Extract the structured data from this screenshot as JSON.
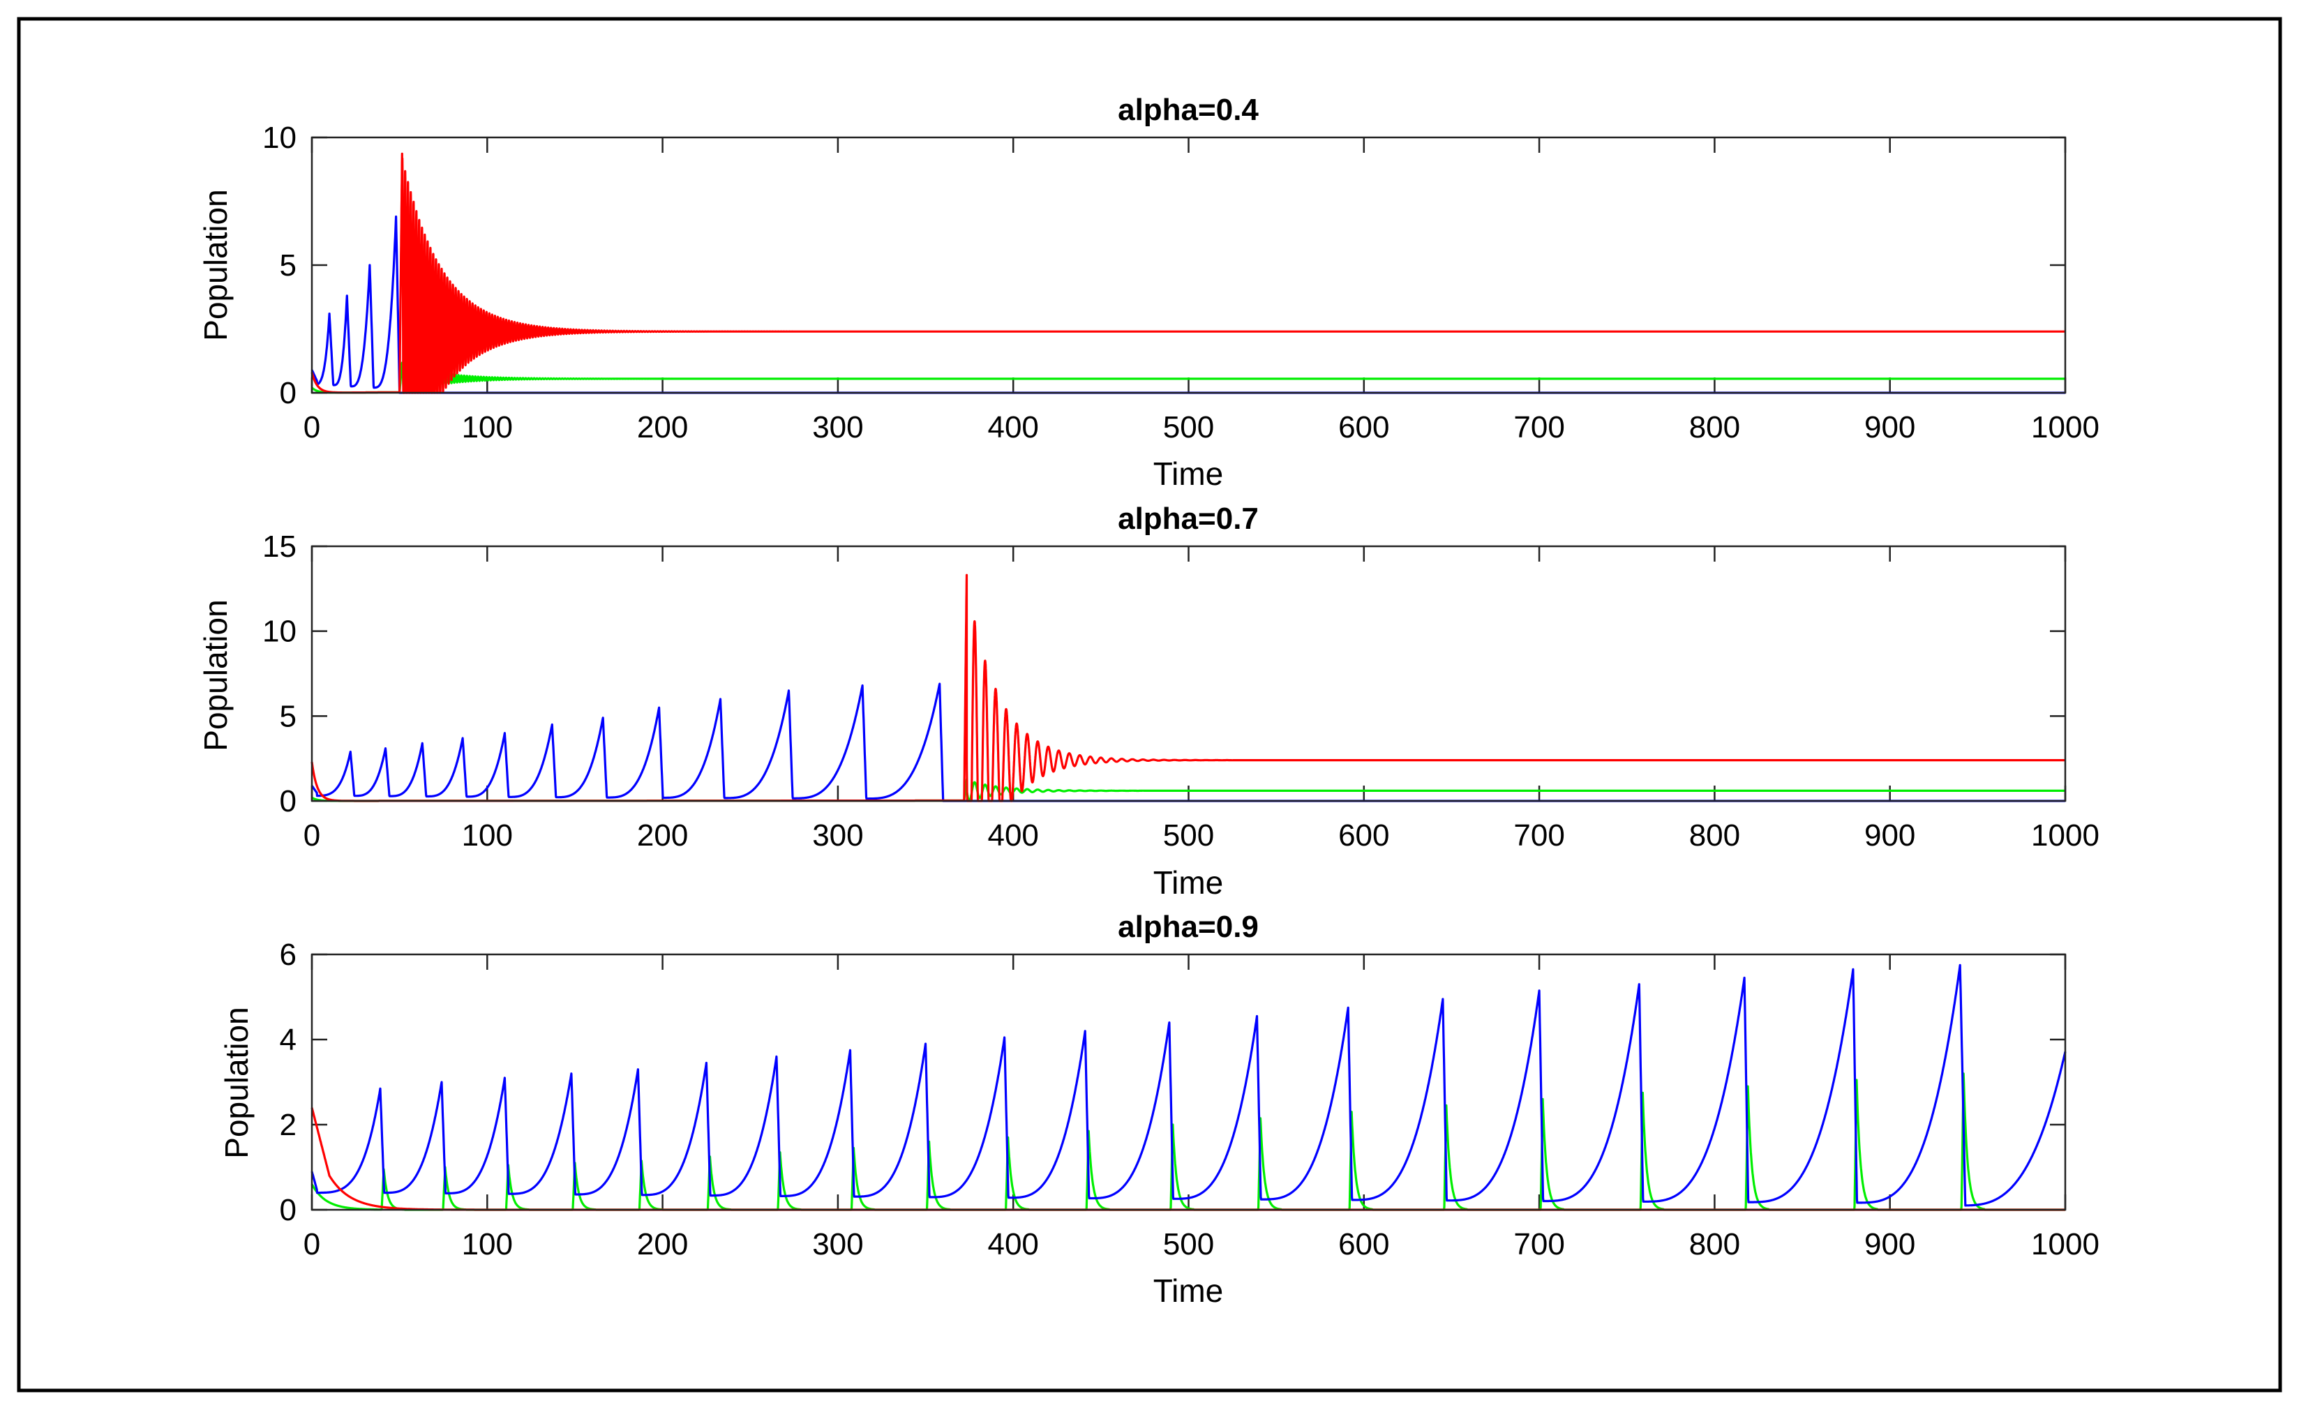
{
  "figure": {
    "frame_color": "#000000",
    "background": "#ffffff",
    "series_colors": {
      "blue": "#0000ff",
      "red": "#ff0000",
      "green": "#00ee00"
    }
  },
  "chart_data": [
    {
      "type": "line",
      "title": "alpha=0.4",
      "xlabel": "Time",
      "ylabel": "Population",
      "xlim": [
        0,
        1000
      ],
      "ylim": [
        0,
        10
      ],
      "xticks": [
        0,
        100,
        200,
        300,
        400,
        500,
        600,
        700,
        800,
        900,
        1000
      ],
      "yticks": [
        0,
        5,
        10
      ],
      "grid": false,
      "series": [
        {
          "name": "blue",
          "color": "#0000ff",
          "behavior": "spikes",
          "baseline": 0.3,
          "spikes": [
            [
              10,
              3.1
            ],
            [
              20,
              3.8
            ],
            [
              33,
              5.0
            ],
            [
              48,
              6.9
            ]
          ],
          "final": 0.0
        },
        {
          "name": "red",
          "color": "#ff0000",
          "behavior": "damped_oscillation",
          "initial": 0.8,
          "onset": 50,
          "peak": 9.7,
          "equilibrium": 2.4,
          "period": 1.6,
          "decay_time": 22,
          "end": 1000
        },
        {
          "name": "green",
          "color": "#00ee00",
          "behavior": "damped_oscillation",
          "initial": 0.2,
          "onset": 50,
          "peak": 1.2,
          "equilibrium": 0.55,
          "period": 1.6,
          "decay_time": 22,
          "end": 1000
        }
      ]
    },
    {
      "type": "line",
      "title": "alpha=0.7",
      "xlabel": "Time",
      "ylabel": "Population",
      "xlim": [
        0,
        1000
      ],
      "ylim": [
        0,
        15
      ],
      "xticks": [
        0,
        100,
        200,
        300,
        400,
        500,
        600,
        700,
        800,
        900,
        1000
      ],
      "yticks": [
        0,
        5,
        10,
        15
      ],
      "grid": false,
      "series": [
        {
          "name": "blue",
          "color": "#0000ff",
          "behavior": "spikes",
          "baseline": 0.3,
          "spikes": [
            [
              22,
              2.9
            ],
            [
              42,
              3.1
            ],
            [
              63,
              3.4
            ],
            [
              86,
              3.7
            ],
            [
              110,
              4.0
            ],
            [
              137,
              4.5
            ],
            [
              166,
              4.9
            ],
            [
              198,
              5.5
            ],
            [
              233,
              6.0
            ],
            [
              272,
              6.5
            ],
            [
              314,
              6.8
            ],
            [
              358,
              6.9
            ]
          ],
          "final": 0.0
        },
        {
          "name": "red",
          "color": "#ff0000",
          "behavior": "damped_oscillation",
          "initial": 2.3,
          "onset": 372,
          "peak": 13.8,
          "equilibrium": 2.4,
          "period": 6,
          "decay_time": 18,
          "end": 1000
        },
        {
          "name": "green",
          "color": "#00ee00",
          "behavior": "damped_oscillation",
          "initial": 0.2,
          "onset": 372,
          "peak": 1.3,
          "equilibrium": 0.6,
          "period": 6,
          "decay_time": 18,
          "end": 1000
        }
      ]
    },
    {
      "type": "line",
      "title": "alpha=0.9",
      "xlabel": "Time",
      "ylabel": "Population",
      "xlim": [
        0,
        1000
      ],
      "ylim": [
        0,
        6
      ],
      "xticks": [
        0,
        100,
        200,
        300,
        400,
        500,
        600,
        700,
        800,
        900,
        1000
      ],
      "yticks": [
        0,
        2,
        4,
        6
      ],
      "grid": false,
      "series": [
        {
          "name": "blue",
          "color": "#0000ff",
          "behavior": "spikes",
          "baseline": 0.4,
          "spikes": [
            [
              39,
              2.85
            ],
            [
              74,
              3.0
            ],
            [
              110,
              3.1
            ],
            [
              148,
              3.2
            ],
            [
              186,
              3.3
            ],
            [
              225,
              3.45
            ],
            [
              265,
              3.6
            ],
            [
              307,
              3.75
            ],
            [
              350,
              3.9
            ],
            [
              395,
              4.05
            ],
            [
              441,
              4.2
            ],
            [
              489,
              4.4
            ],
            [
              539,
              4.55
            ],
            [
              591,
              4.75
            ],
            [
              645,
              4.95
            ],
            [
              700,
              5.15
            ],
            [
              757,
              5.3
            ],
            [
              817,
              5.45
            ],
            [
              879,
              5.65
            ],
            [
              940,
              5.75
            ]
          ],
          "end_value": 3.9
        },
        {
          "name": "red",
          "color": "#ff0000",
          "behavior": "decay",
          "initial": 2.4,
          "shoulder": 0.6,
          "final": 0.0
        },
        {
          "name": "green",
          "color": "#00ee00",
          "behavior": "pulses",
          "initial": 0.6,
          "pulses": [
            [
              41,
              0.95
            ],
            [
              76,
              1.0
            ],
            [
              112,
              1.05
            ],
            [
              150,
              1.1
            ],
            [
              188,
              1.15
            ],
            [
              227,
              1.25
            ],
            [
              267,
              1.35
            ],
            [
              309,
              1.45
            ],
            [
              352,
              1.6
            ],
            [
              397,
              1.7
            ],
            [
              443,
              1.85
            ],
            [
              491,
              2.0
            ],
            [
              541,
              2.15
            ],
            [
              593,
              2.3
            ],
            [
              647,
              2.45
            ],
            [
              702,
              2.6
            ],
            [
              759,
              2.75
            ],
            [
              819,
              2.9
            ],
            [
              881,
              3.05
            ],
            [
              942,
              3.2
            ]
          ]
        }
      ]
    }
  ]
}
